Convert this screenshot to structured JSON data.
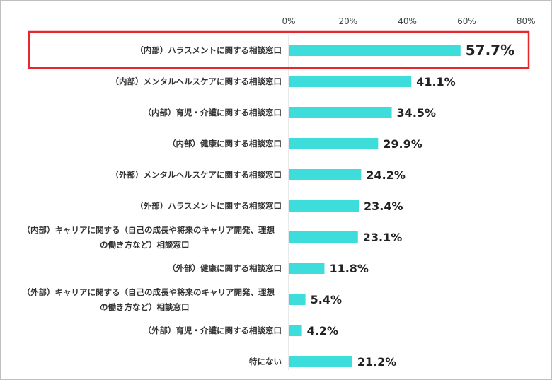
{
  "chart_data": {
    "type": "bar",
    "orientation": "horizontal",
    "xlim": [
      0,
      80
    ],
    "ticks": [
      "0%",
      "20%",
      "40%",
      "60%",
      "80%"
    ],
    "grid": false,
    "bar_color": "#3DDDDC",
    "highlight_color": "#E8262B",
    "highlight_index": 0,
    "categories": [
      [
        "（内部）ハラスメントに関する相談窓口"
      ],
      [
        "（内部）メンタルヘルスケアに関する相談窓口"
      ],
      [
        "（内部）育児・介護に関する相談窓口"
      ],
      [
        "（内部）健康に関する相談窓口"
      ],
      [
        "（外部）メンタルヘルスケアに関する相談窓口"
      ],
      [
        "（外部）ハラスメントに関する相談窓口"
      ],
      [
        "（内部）キャリアに関する（自己の成長や将来のキャリア開発、理想",
        "の働き方など）相談窓口"
      ],
      [
        "（外部）健康に関する相談窓口"
      ],
      [
        "（外部）キャリアに関する（自己の成長や将来のキャリア開発、理想",
        "の働き方など）相談窓口"
      ],
      [
        "（外部）育児・介護に関する相談窓口"
      ],
      [
        "特にない"
      ]
    ],
    "values": [
      57.7,
      41.1,
      34.5,
      29.9,
      24.2,
      23.4,
      23.1,
      11.8,
      5.4,
      4.2,
      21.2
    ],
    "value_labels": [
      "57.7%",
      "41.1%",
      "34.5%",
      "29.9%",
      "24.2%",
      "23.4%",
      "23.1%",
      "11.8%",
      "5.4%",
      "4.2%",
      "21.2%"
    ]
  }
}
